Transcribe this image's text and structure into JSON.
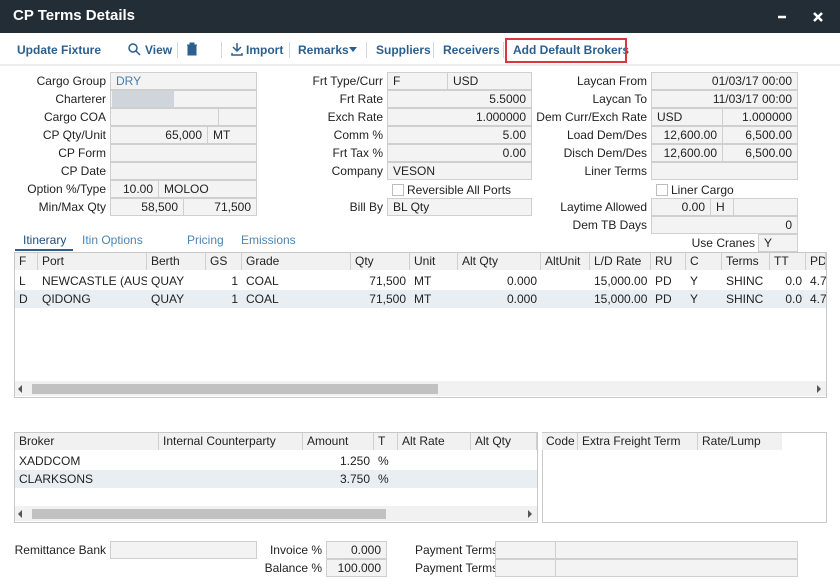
{
  "header": {
    "title": "CP Terms Details"
  },
  "toolbar": {
    "items": [
      "Update Fixture",
      "View",
      "Import",
      "Remarks",
      "Suppliers",
      "Receivers",
      "Add Default Brokers"
    ],
    "highlighted": 6
  },
  "form": {
    "left": [
      {
        "label": "Cargo Group",
        "values": [
          "DRY"
        ]
      },
      {
        "label": "Charterer"
      },
      {
        "label": "Cargo COA"
      },
      {
        "label": "CP Qty/Unit",
        "values": [
          "65,000",
          "MT"
        ]
      },
      {
        "label": "CP Form"
      },
      {
        "label": "CP Date"
      },
      {
        "label": "Option %/Type",
        "values": [
          "10.00",
          "MOLOO"
        ]
      },
      {
        "label": "Min/Max Qty",
        "values": [
          "58,500",
          "71,500"
        ]
      }
    ],
    "middle": [
      {
        "label": "Frt Type/Curr",
        "values": [
          "F",
          "USD"
        ]
      },
      {
        "label": "Frt Rate",
        "values": [
          "5.5000"
        ]
      },
      {
        "label": "Exch Rate",
        "values": [
          "1.000000"
        ]
      },
      {
        "label": "Comm %",
        "values": [
          "5.00"
        ]
      },
      {
        "label": "Frt Tax %",
        "values": [
          "0.00"
        ]
      },
      {
        "label": "Company",
        "values": [
          "VESON"
        ]
      },
      {
        "label": "Bill By",
        "values": [
          "BL Qty"
        ]
      }
    ],
    "right": [
      {
        "label": "Laycan From",
        "values": [
          "01/03/17 00:00"
        ]
      },
      {
        "label": "Laycan To",
        "values": [
          "11/03/17 00:00"
        ]
      },
      {
        "label": "Dem Curr/Exch Rate",
        "values": [
          "USD",
          "1.000000"
        ]
      },
      {
        "label": "Load Dem/Des",
        "values": [
          "12,600.00",
          "6,500.00"
        ]
      },
      {
        "label": "Disch Dem/Des",
        "values": [
          "12,600.00",
          "6,500.00"
        ]
      },
      {
        "label": "Liner Terms"
      },
      {
        "label": "Laytime Allowed",
        "values": [
          "0.00",
          "H"
        ]
      },
      {
        "label": "Dem TB Days",
        "values": [
          "0"
        ]
      },
      {
        "label": "Use Cranes",
        "values": [
          "Y"
        ]
      }
    ],
    "checkboxes": [
      {
        "label": "Reversible All Ports",
        "checked": false
      },
      {
        "label": "Liner Cargo",
        "checked": false
      }
    ]
  },
  "tabs": {
    "items": [
      "Itinerary",
      "Itin Options",
      "Pricing",
      "Emissions"
    ],
    "active": 0
  },
  "itinerary": {
    "columns": [
      "F",
      "Port",
      "Berth",
      "GS",
      "Grade",
      "Qty",
      "Unit",
      "Alt Qty",
      "AltUnit",
      "L/D Rate",
      "RU",
      "C",
      "Terms",
      "TT",
      "PD"
    ],
    "rows": [
      [
        "L",
        "NEWCASTLE (AUST",
        "QUAY",
        "1",
        "COAL",
        "71,500",
        "MT",
        "0.000",
        null,
        "15,000.00",
        "PD",
        "Y",
        "SHINC",
        "0.0",
        "4.7"
      ],
      [
        "D",
        "QIDONG",
        "QUAY",
        "1",
        "COAL",
        "71,500",
        "MT",
        "0.000",
        null,
        "15,000.00",
        "PD",
        "Y",
        "SHINC",
        "0.0",
        "4.7"
      ]
    ]
  },
  "brokers": {
    "columns": [
      "Broker",
      "Internal Counterparty",
      "Amount",
      "T",
      "Alt Rate",
      "Alt Qty"
    ],
    "rows": [
      [
        "XADDCOM",
        null,
        "1.250",
        "%",
        null,
        null
      ],
      [
        "CLARKSONS",
        null,
        "3.750",
        "%",
        null,
        null
      ]
    ]
  },
  "freight_terms": {
    "columns": [
      "Code",
      "Extra Freight Term",
      "Rate/Lump"
    ]
  },
  "footer": {
    "remittance_bank": {
      "label": "Remittance Bank"
    },
    "invoice": {
      "label": "Invoice %",
      "value": "0.000"
    },
    "balance": {
      "label": "Balance %",
      "value": "100.000"
    },
    "payment_terms": [
      {
        "label": "Payment Terms"
      },
      {
        "label": "Payment Terms"
      }
    ]
  }
}
